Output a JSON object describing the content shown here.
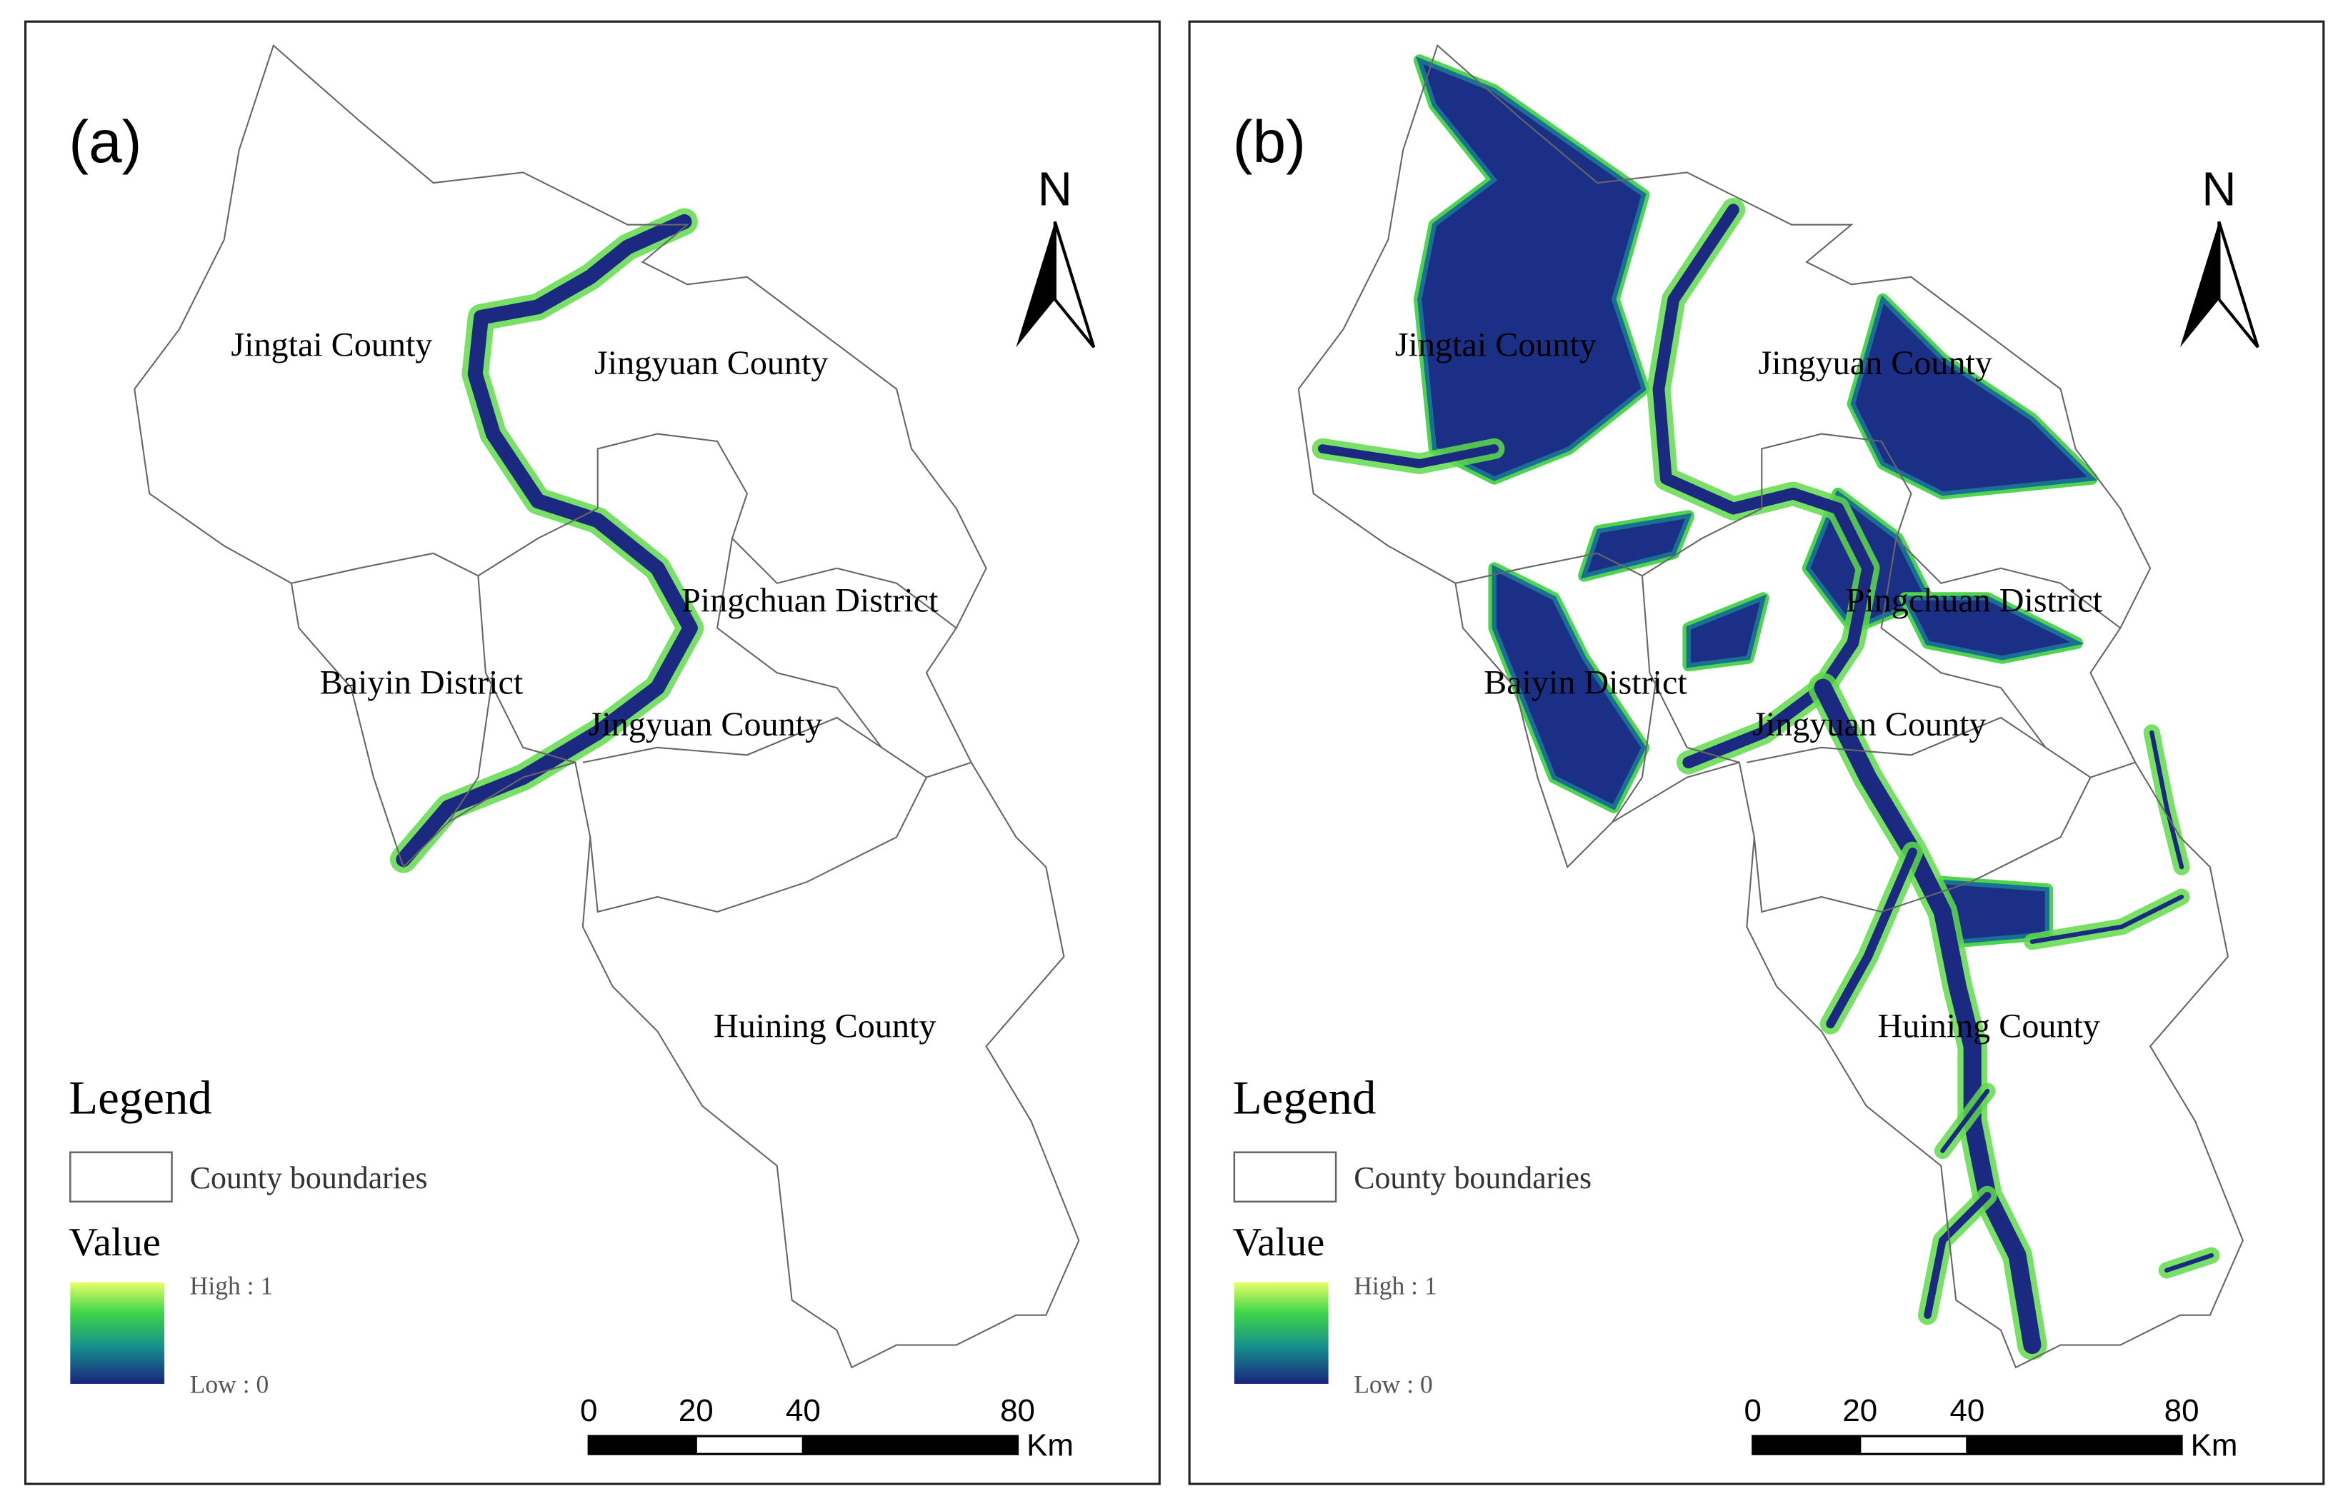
{
  "panels": [
    {
      "label": "(a)",
      "north": "N",
      "county_labels": [
        "Jingtai County",
        "Jingyuan County",
        "Pingchuan District",
        "Baiyin District",
        "Jingyuan County",
        "Huining County"
      ],
      "legend": {
        "title": "Legend",
        "boundary": "County boundaries",
        "value_title": "Value",
        "high": "High : 1",
        "low": "Low : 0"
      },
      "scale_bar": {
        "ticks": [
          0,
          20,
          40,
          80
        ],
        "unit": "Km"
      }
    },
    {
      "label": "(b)",
      "north": "N",
      "county_labels": [
        "Jingtai County",
        "Jingyuan County",
        "Pingchuan District",
        "Baiyin District",
        "Jingyuan County",
        "Huining County"
      ],
      "legend": {
        "title": "Legend",
        "boundary": "County boundaries",
        "value_title": "Value",
        "high": "High : 1",
        "low": "Low : 0"
      },
      "scale_bar": {
        "ticks": [
          0,
          20,
          40,
          80
        ],
        "unit": "Km"
      }
    }
  ]
}
